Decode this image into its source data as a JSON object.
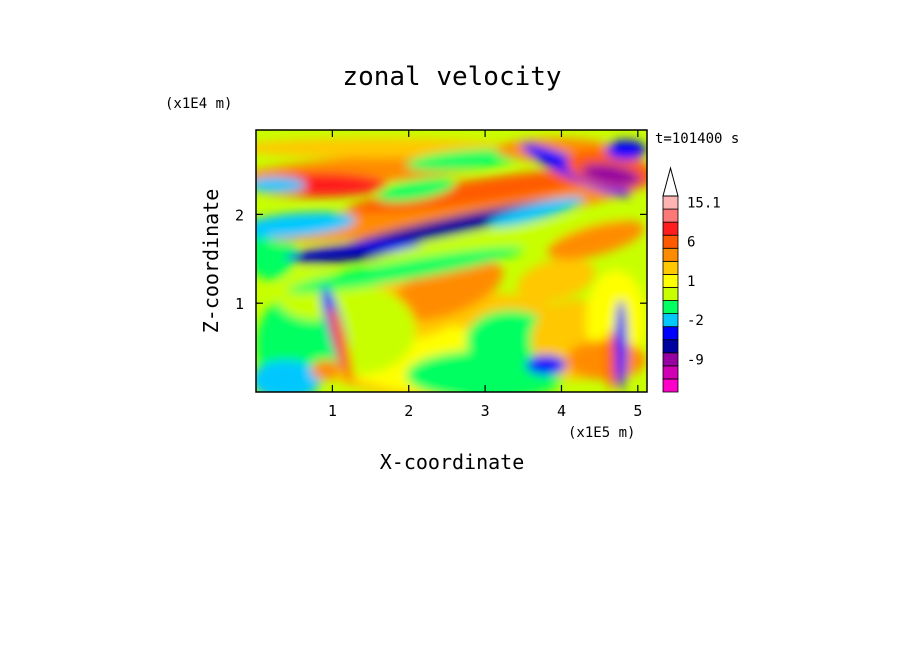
{
  "chart_data": {
    "type": "heatmap",
    "title": "zonal velocity",
    "xlabel": "X-coordinate",
    "ylabel": "Z-coordinate",
    "x_scale_note": "(x1E5 m)",
    "y_scale_note": "(x1E4 m)",
    "time_label": "t=101400 s",
    "xlim": [
      0,
      5.12
    ],
    "ylim": [
      0,
      2.95
    ],
    "xticks": [
      "1",
      "2",
      "3",
      "4",
      "5"
    ],
    "yticks": [
      "1",
      "2"
    ],
    "colorbar": {
      "labels": [
        "15.1",
        "6",
        "1",
        "-2",
        "-9"
      ],
      "bands": [
        {
          "color": "#ff00c8"
        },
        {
          "color": "#d200b4"
        },
        {
          "color": "#9600a0"
        },
        {
          "color": "#0000a0"
        },
        {
          "color": "#0000ff"
        },
        {
          "color": "#00c8ff"
        },
        {
          "color": "#00ff60"
        },
        {
          "color": "#c8ff00"
        },
        {
          "color": "#ffff00"
        },
        {
          "color": "#ffc800"
        },
        {
          "color": "#ff8c00"
        },
        {
          "color": "#ff5a00"
        },
        {
          "color": "#ff1e1e"
        },
        {
          "color": "#ff7878"
        },
        {
          "color": "#ffb4b4"
        }
      ]
    }
  }
}
